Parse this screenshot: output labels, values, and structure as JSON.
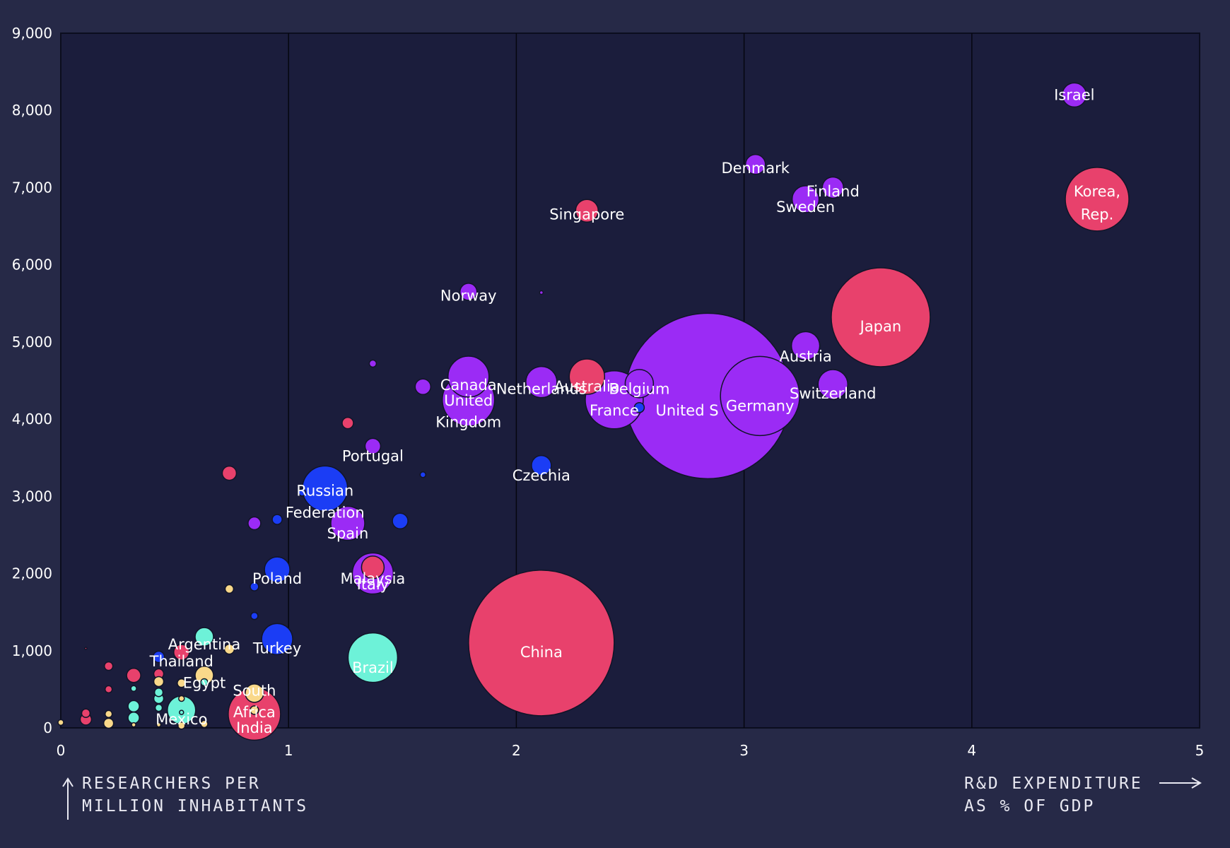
{
  "chart_data": {
    "type": "scatter",
    "title": "",
    "xlabel_lines": [
      "R&D EXPENDITURE",
      "AS % OF GDP"
    ],
    "ylabel_lines": [
      "RESEARCHERS PER",
      "MILLION INHABITANTS"
    ],
    "xlim": [
      0,
      5
    ],
    "ylim": [
      0,
      9000
    ],
    "x_ticks": [
      0,
      1,
      2,
      3,
      4,
      5
    ],
    "x_tick_labels": [
      "0",
      "1",
      "2",
      "3",
      "4",
      "5"
    ],
    "y_ticks": [
      0,
      1000,
      2000,
      3000,
      4000,
      5000,
      6000,
      7000,
      8000,
      9000
    ],
    "y_tick_labels": [
      "0",
      "1,000",
      "2,000",
      "3,000",
      "4,000",
      "5,000",
      "6,000",
      "7,000",
      "8,000",
      "9,000"
    ],
    "grid": "vertical",
    "size_encoding": "bubble area",
    "colors": {
      "background": "#262947",
      "plot": "#1b1d3c",
      "purple": "#9b2bf5",
      "red": "#e8416c",
      "blue": "#1b3df5",
      "teal": "#6df2d8",
      "yellow": "#f9d88a"
    },
    "points": [
      {
        "label": "United States",
        "label_shown": "United S",
        "x": 2.84,
        "y": 4300,
        "size": 117,
        "color": "purple"
      },
      {
        "label": "China",
        "x": 2.11,
        "y": 1100,
        "size": 103,
        "color": "red"
      },
      {
        "label": "Japan",
        "x": 3.6,
        "y": 5320,
        "size": 70,
        "color": "red"
      },
      {
        "label": "Germany",
        "x": 3.07,
        "y": 4300,
        "size": 56,
        "color": "purple"
      },
      {
        "label": "Korea, Rep.",
        "x": 4.55,
        "y": 6850,
        "size": 45,
        "color": "red"
      },
      {
        "label": "France",
        "x": 2.43,
        "y": 4250,
        "size": 41,
        "color": "purple"
      },
      {
        "label": "United Kingdom",
        "label_shown": "United Kingdom",
        "x": 1.79,
        "y": 4250,
        "size": 37,
        "color": "purple"
      },
      {
        "label": "India",
        "x": 0.85,
        "y": 180,
        "size": 37,
        "color": "red"
      },
      {
        "label": "Brazil",
        "x": 1.37,
        "y": 910,
        "size": 35,
        "color": "teal"
      },
      {
        "label": "Russian Federation",
        "x": 1.16,
        "y": 3100,
        "size": 32,
        "color": "blue"
      },
      {
        "label": "Italy",
        "x": 1.37,
        "y": 2000,
        "size": 29,
        "color": "purple"
      },
      {
        "label": "Canada",
        "x": 1.79,
        "y": 4550,
        "size": 29,
        "color": "purple"
      },
      {
        "label": "Spain",
        "x": 1.26,
        "y": 2650,
        "size": 24,
        "color": "purple"
      },
      {
        "label": "Australia",
        "x": 2.31,
        "y": 4550,
        "size": 25,
        "color": "red"
      },
      {
        "label": "Netherlands",
        "x": 2.11,
        "y": 4480,
        "size": 22,
        "color": "purple"
      },
      {
        "label": "Switzerland",
        "x": 3.39,
        "y": 4450,
        "size": 21,
        "color": "purple"
      },
      {
        "label": "Belgium",
        "x": 2.54,
        "y": 4460,
        "size": 20,
        "color": "purple"
      },
      {
        "label": "Sweden",
        "x": 3.27,
        "y": 6850,
        "size": 19,
        "color": "purple"
      },
      {
        "label": "Austria",
        "x": 3.27,
        "y": 4950,
        "size": 20,
        "color": "purple"
      },
      {
        "label": "Turkey",
        "x": 0.95,
        "y": 1150,
        "size": 22,
        "color": "blue"
      },
      {
        "label": "Mexico",
        "x": 0.53,
        "y": 230,
        "size": 20,
        "color": "teal"
      },
      {
        "label": "Poland",
        "x": 0.95,
        "y": 2050,
        "size": 18,
        "color": "blue"
      },
      {
        "label": "Malaysia",
        "x": 1.37,
        "y": 2080,
        "size": 16,
        "color": "red"
      },
      {
        "label": "Singapore",
        "x": 2.31,
        "y": 6700,
        "size": 16,
        "color": "red"
      },
      {
        "label": "Israel",
        "x": 4.45,
        "y": 8200,
        "size": 17,
        "color": "purple"
      },
      {
        "label": "Denmark",
        "x": 3.05,
        "y": 7300,
        "size": 14,
        "color": "purple"
      },
      {
        "label": "Finland",
        "x": 3.39,
        "y": 7000,
        "size": 15,
        "color": "purple"
      },
      {
        "label": "Norway",
        "x": 1.79,
        "y": 5650,
        "size": 12,
        "color": "purple"
      },
      {
        "label": "Portugal",
        "x": 1.37,
        "y": 3650,
        "size": 11,
        "color": "purple"
      },
      {
        "label": "Czechia",
        "x": 2.11,
        "y": 3400,
        "size": 14,
        "color": "blue"
      },
      {
        "label": "Argentina",
        "x": 0.63,
        "y": 1180,
        "size": 13,
        "color": "teal"
      },
      {
        "label": "Thailand",
        "x": 0.53,
        "y": 980,
        "size": 11,
        "color": "red"
      },
      {
        "label": "Egypt",
        "x": 0.63,
        "y": 680,
        "size": 13,
        "color": "yellow"
      },
      {
        "label": "South Africa",
        "x": 0.85,
        "y": 450,
        "size": 13,
        "color": "yellow"
      },
      {
        "label": "",
        "x": 1.49,
        "y": 2680,
        "size": 11,
        "color": "blue"
      },
      {
        "label": "",
        "x": 1.59,
        "y": 4420,
        "size": 11,
        "color": "purple"
      },
      {
        "label": "",
        "x": 1.26,
        "y": 3950,
        "size": 8,
        "color": "red"
      },
      {
        "label": "",
        "x": 0.74,
        "y": 3300,
        "size": 10,
        "color": "red"
      },
      {
        "label": "",
        "x": 0.85,
        "y": 2650,
        "size": 9,
        "color": "purple"
      },
      {
        "label": "",
        "x": 0.95,
        "y": 2700,
        "size": 7,
        "color": "blue"
      },
      {
        "label": "",
        "x": 1.06,
        "y": 3050,
        "size": 5,
        "color": "blue"
      },
      {
        "label": "",
        "x": 1.37,
        "y": 4720,
        "size": 5,
        "color": "purple"
      },
      {
        "label": "",
        "x": 1.59,
        "y": 3280,
        "size": 4,
        "color": "blue"
      },
      {
        "label": "",
        "x": 2.11,
        "y": 5640,
        "size": 2.5,
        "color": "purple"
      },
      {
        "label": "",
        "x": 2.54,
        "y": 4150,
        "size": 7,
        "color": "blue"
      },
      {
        "label": "",
        "x": 0.74,
        "y": 1800,
        "size": 6,
        "color": "yellow"
      },
      {
        "label": "",
        "x": 0.85,
        "y": 1830,
        "size": 6,
        "color": "blue"
      },
      {
        "label": "",
        "x": 0.85,
        "y": 1450,
        "size": 5,
        "color": "blue"
      },
      {
        "label": "",
        "x": 0.74,
        "y": 1020,
        "size": 7,
        "color": "yellow"
      },
      {
        "label": "",
        "x": 0.43,
        "y": 920,
        "size": 8,
        "color": "blue"
      },
      {
        "label": "",
        "x": 0.32,
        "y": 680,
        "size": 10,
        "color": "red"
      },
      {
        "label": "",
        "x": 0.21,
        "y": 800,
        "size": 6,
        "color": "red"
      },
      {
        "label": "",
        "x": 0.11,
        "y": 1030,
        "size": 1.5,
        "color": "red"
      },
      {
        "label": "",
        "x": 0.43,
        "y": 700,
        "size": 7,
        "color": "red"
      },
      {
        "label": "",
        "x": 0.43,
        "y": 600,
        "size": 7,
        "color": "yellow"
      },
      {
        "label": "",
        "x": 0.53,
        "y": 580,
        "size": 6,
        "color": "yellow"
      },
      {
        "label": "",
        "x": 0.63,
        "y": 590,
        "size": 5,
        "color": "teal"
      },
      {
        "label": "",
        "x": 0.21,
        "y": 500,
        "size": 5,
        "color": "red"
      },
      {
        "label": "",
        "x": 0.32,
        "y": 510,
        "size": 4,
        "color": "teal"
      },
      {
        "label": "",
        "x": 0.43,
        "y": 460,
        "size": 6,
        "color": "teal"
      },
      {
        "label": "",
        "x": 0.43,
        "y": 380,
        "size": 7,
        "color": "teal"
      },
      {
        "label": "",
        "x": 0.53,
        "y": 380,
        "size": 4,
        "color": "yellow"
      },
      {
        "label": "",
        "x": 0.32,
        "y": 280,
        "size": 8,
        "color": "teal"
      },
      {
        "label": "",
        "x": 0.43,
        "y": 260,
        "size": 5,
        "color": "teal"
      },
      {
        "label": "",
        "x": 0.53,
        "y": 200,
        "size": 3,
        "color": "teal"
      },
      {
        "label": "",
        "x": 0.85,
        "y": 230,
        "size": 6,
        "color": "yellow"
      },
      {
        "label": "",
        "x": 0.11,
        "y": 190,
        "size": 6,
        "color": "red"
      },
      {
        "label": "",
        "x": 0.11,
        "y": 110,
        "size": 8,
        "color": "red"
      },
      {
        "label": "",
        "x": 0.21,
        "y": 180,
        "size": 5,
        "color": "yellow"
      },
      {
        "label": "",
        "x": 0.32,
        "y": 130,
        "size": 8,
        "color": "teal"
      },
      {
        "label": "",
        "x": 0.21,
        "y": 60,
        "size": 7,
        "color": "yellow"
      },
      {
        "label": "",
        "x": 0.32,
        "y": 40,
        "size": 3,
        "color": "yellow"
      },
      {
        "label": "",
        "x": 0.43,
        "y": 40,
        "size": 3,
        "color": "yellow"
      },
      {
        "label": "",
        "x": 0.53,
        "y": 30,
        "size": 5,
        "color": "yellow"
      },
      {
        "label": "",
        "x": 0.63,
        "y": 50,
        "size": 5,
        "color": "yellow"
      },
      {
        "label": "",
        "x": 0.0,
        "y": 70,
        "size": 4,
        "color": "yellow"
      }
    ],
    "labels": [
      {
        "text": "Israel",
        "x": 4.45,
        "y": 8200
      },
      {
        "text": "Denmark",
        "x": 3.05,
        "y": 7250
      },
      {
        "text": "Finland",
        "x": 3.39,
        "y": 6950
      },
      {
        "text": "Sweden",
        "x": 3.27,
        "y": 6750
      },
      {
        "text": "Korea,",
        "x": 4.55,
        "y": 6950
      },
      {
        "text": "Rep.",
        "x": 4.55,
        "y": 6650
      },
      {
        "text": "Singapore",
        "x": 2.31,
        "y": 6650
      },
      {
        "text": "Norway",
        "x": 1.79,
        "y": 5600
      },
      {
        "text": "Japan",
        "x": 3.6,
        "y": 5200
      },
      {
        "text": "Austria",
        "x": 3.27,
        "y": 4810
      },
      {
        "text": "Canada",
        "x": 1.79,
        "y": 4440
      },
      {
        "text": "United",
        "x": 1.79,
        "y": 4240
      },
      {
        "text": "Kingdom",
        "x": 1.79,
        "y": 3960
      },
      {
        "text": "Netherlands",
        "x": 2.11,
        "y": 4390
      },
      {
        "text": "Australia",
        "x": 2.31,
        "y": 4420
      },
      {
        "text": "Belgium",
        "x": 2.54,
        "y": 4390
      },
      {
        "text": "Switzerland",
        "x": 3.39,
        "y": 4330
      },
      {
        "text": "Germany",
        "x": 3.07,
        "y": 4170
      },
      {
        "text": "United S",
        "x": 2.75,
        "y": 4110
      },
      {
        "text": "France",
        "x": 2.43,
        "y": 4110
      },
      {
        "text": "Portugal",
        "x": 1.37,
        "y": 3520
      },
      {
        "text": "Czechia",
        "x": 2.11,
        "y": 3270
      },
      {
        "text": "Russian",
        "x": 1.16,
        "y": 3070
      },
      {
        "text": "Federation",
        "x": 1.16,
        "y": 2790
      },
      {
        "text": "Spain",
        "x": 1.26,
        "y": 2520
      },
      {
        "text": "Poland",
        "x": 0.95,
        "y": 1930
      },
      {
        "text": "Malaysia",
        "x": 1.37,
        "y": 1930
      },
      {
        "text": "Italy",
        "x": 1.37,
        "y": 1860
      },
      {
        "text": "China",
        "x": 2.11,
        "y": 980
      },
      {
        "text": "Argentina",
        "x": 0.63,
        "y": 1080
      },
      {
        "text": "Turkey",
        "x": 0.95,
        "y": 1030
      },
      {
        "text": "Thailand",
        "x": 0.53,
        "y": 860
      },
      {
        "text": "Brazil",
        "x": 1.37,
        "y": 780
      },
      {
        "text": "Egypt",
        "x": 0.63,
        "y": 580
      },
      {
        "text": "South",
        "x": 0.85,
        "y": 480
      },
      {
        "text": "Africa",
        "x": 0.85,
        "y": 200
      },
      {
        "text": "India",
        "x": 0.85,
        "y": 0
      },
      {
        "text": "Mexico",
        "x": 0.53,
        "y": 110
      }
    ]
  }
}
